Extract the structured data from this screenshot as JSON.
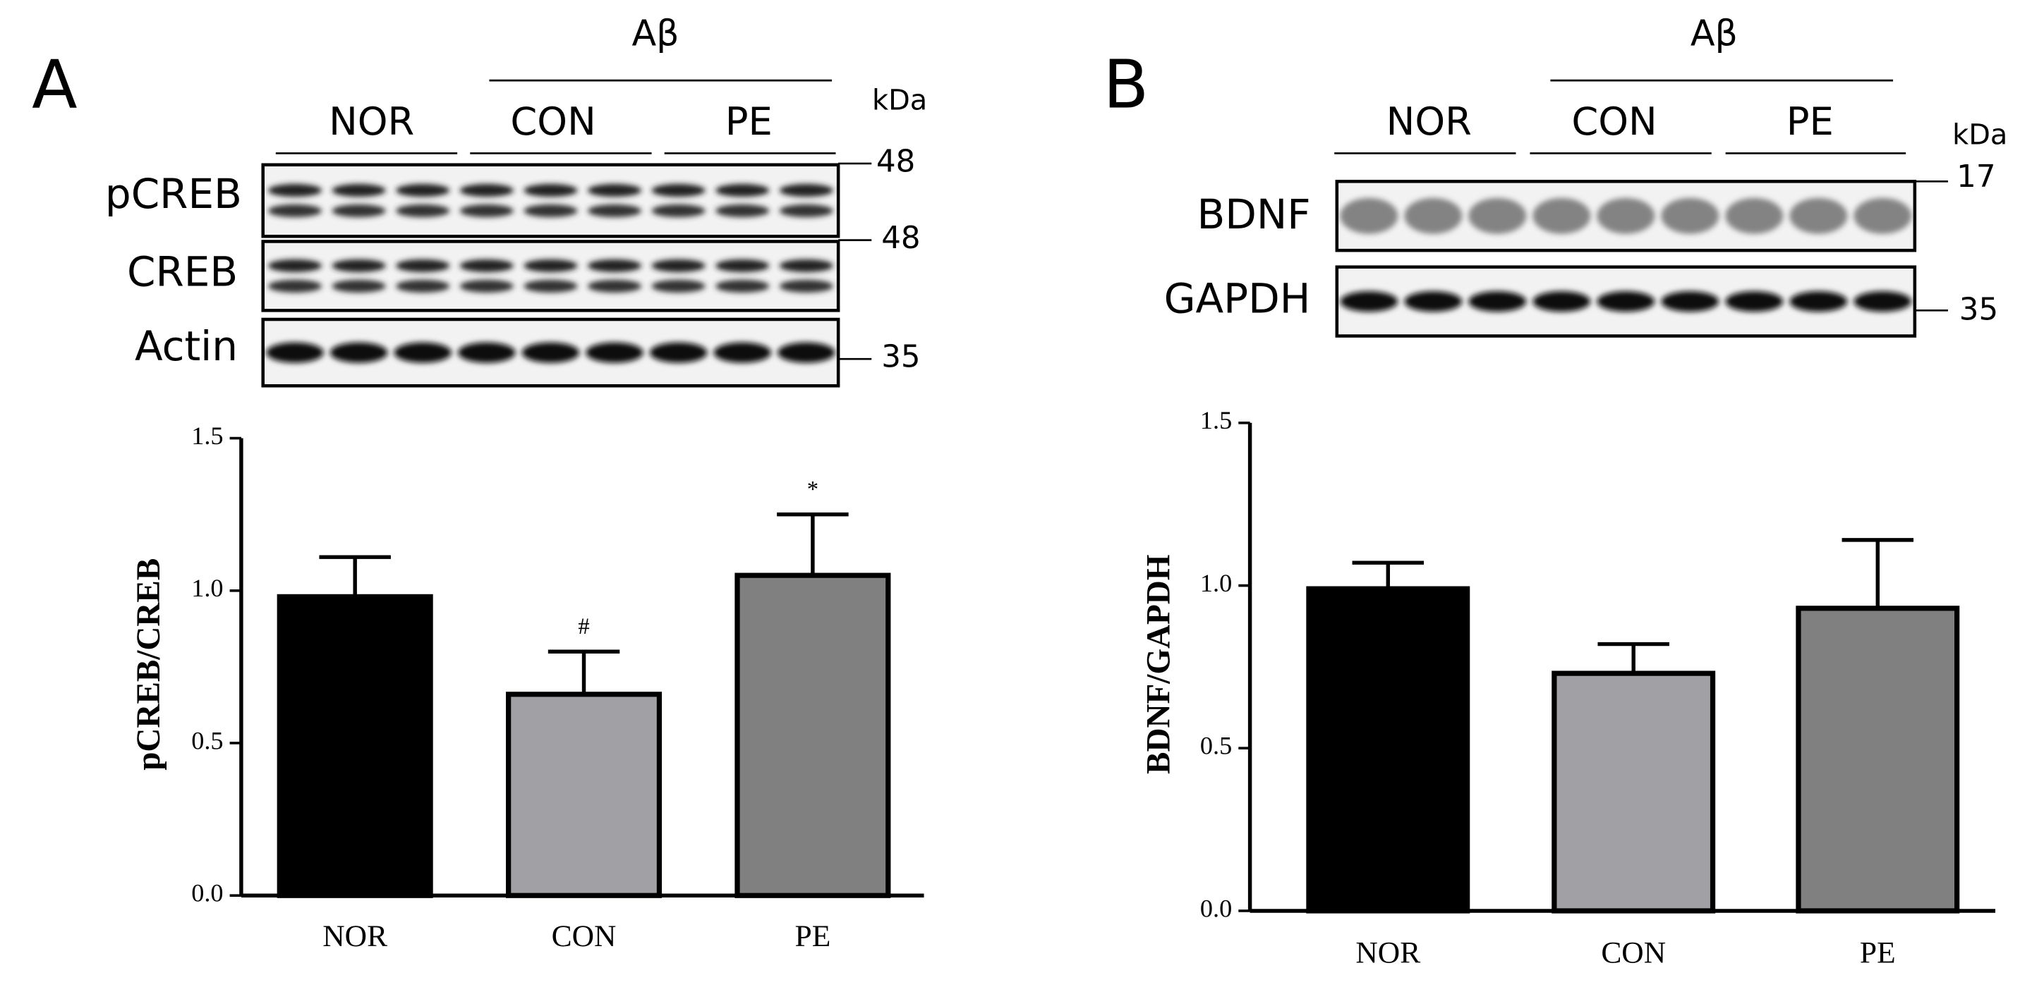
{
  "blots": [
    {
      "panel": "A",
      "group": "Aβ",
      "groups": [
        "NOR",
        "CON",
        "PE"
      ],
      "unit": "kDa",
      "rows": [
        {
          "name": "pCREB",
          "marker": "48"
        },
        {
          "name": "CREB",
          "marker": "48"
        },
        {
          "name": "Actin",
          "marker": "35"
        }
      ]
    },
    {
      "panel": "B",
      "group": "Aβ",
      "groups": [
        "NOR",
        "CON",
        "PE"
      ],
      "unit": "kDa",
      "rows": [
        {
          "name": "BDNF",
          "marker": "17"
        },
        {
          "name": "GAPDH",
          "marker": "35"
        }
      ]
    }
  ],
  "chart_data": [
    {
      "type": "bar",
      "y_label": "pCREB/CREB",
      "categories": [
        "NOR",
        "CON",
        "PE"
      ],
      "values": [
        0.98,
        0.66,
        1.05
      ],
      "errors": [
        0.13,
        0.14,
        0.2
      ],
      "colors": [
        "#000000",
        "#a0a0a5",
        "#808080"
      ],
      "bar_labels": [
        null,
        "#",
        "*"
      ],
      "ylim": [
        0,
        1.5
      ],
      "yticks": [
        {
          "value": 0,
          "label": "0.0"
        },
        0.5,
        {
          "value": 1,
          "label": "1.0"
        },
        {
          "value": 1.5,
          "label": "1.5"
        }
      ]
    },
    {
      "type": "bar",
      "y_label": "BDNF/GAPDH",
      "categories": [
        "NOR",
        "CON",
        "PE"
      ],
      "values": [
        0.99,
        0.73,
        0.93
      ],
      "errors": [
        0.08,
        0.09,
        0.21
      ],
      "colors": [
        "#000000",
        "#a0a0a5",
        "#808080"
      ],
      "ylim": [
        0,
        1.5
      ],
      "yticks": [
        {
          "value": 0,
          "label": "0.0"
        },
        0.5,
        {
          "value": 1,
          "label": "1.0"
        },
        {
          "value": 1.5,
          "label": "1.5"
        }
      ]
    }
  ]
}
